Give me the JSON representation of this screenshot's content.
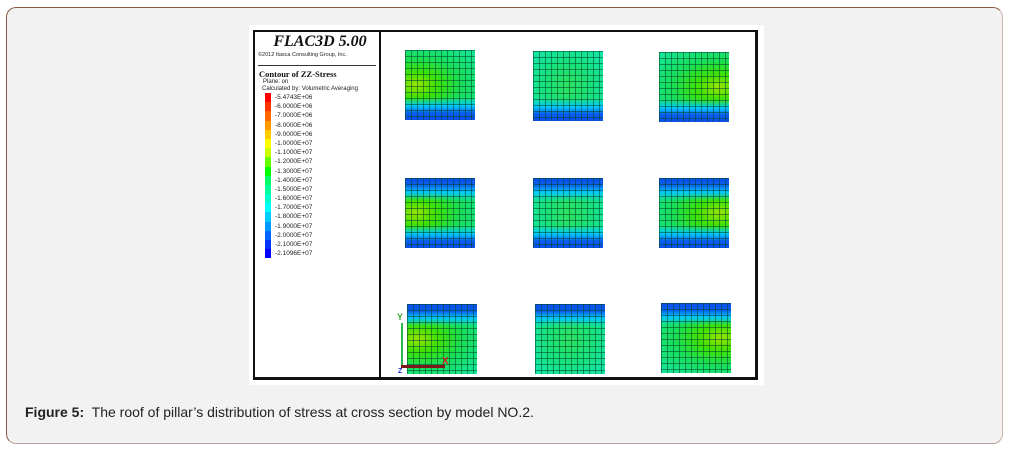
{
  "figure": {
    "software_title": "FLAC3D 5.00",
    "copyright": "©2012 Itasca Consulting Group, Inc.",
    "contour_title": "Contour of ZZ-Stress",
    "plane": "Plane: on",
    "calculated_by": "Calculated by: Volumetric Averaging",
    "legend": [
      {
        "label": "-5.4743E+06",
        "color": "#ff0000"
      },
      {
        "label": "-6.0000E+06",
        "color": "#ff3300"
      },
      {
        "label": "-7.0000E+06",
        "color": "#ff6600"
      },
      {
        "label": "-8.0000E+06",
        "color": "#ff9900"
      },
      {
        "label": "-9.0000E+06",
        "color": "#ffcc00"
      },
      {
        "label": "-1.0000E+07",
        "color": "#ffff00"
      },
      {
        "label": "-1.1000E+07",
        "color": "#ccff00"
      },
      {
        "label": "-1.2000E+07",
        "color": "#66ff00"
      },
      {
        "label": "-1.3000E+07",
        "color": "#00ff00"
      },
      {
        "label": "-1.4000E+07",
        "color": "#00ff66"
      },
      {
        "label": "-1.5000E+07",
        "color": "#00ff99"
      },
      {
        "label": "-1.6000E+07",
        "color": "#00ffcc"
      },
      {
        "label": "-1.7000E+07",
        "color": "#00ffff"
      },
      {
        "label": "-1.8000E+07",
        "color": "#00ccff"
      },
      {
        "label": "-1.9000E+07",
        "color": "#0099ff"
      },
      {
        "label": "-2.0000E+07",
        "color": "#0066ff"
      },
      {
        "label": "-2.1000E+07",
        "color": "#0033ff"
      },
      {
        "label": "-2.1096E+07",
        "color": "#0000ff"
      }
    ],
    "axes": {
      "y": "Y",
      "x": "X",
      "z": "Z"
    },
    "pillars": [
      {
        "row": 1,
        "col": 1,
        "blue_edge": "bottom"
      },
      {
        "row": 1,
        "col": 2,
        "blue_edge": "bottom"
      },
      {
        "row": 1,
        "col": 3,
        "blue_edge": "bottom"
      },
      {
        "row": 2,
        "col": 1,
        "blue_edge": "top-bottom"
      },
      {
        "row": 2,
        "col": 2,
        "blue_edge": "top-bottom"
      },
      {
        "row": 2,
        "col": 3,
        "blue_edge": "top-bottom"
      },
      {
        "row": 3,
        "col": 1,
        "blue_edge": "top"
      },
      {
        "row": 3,
        "col": 2,
        "blue_edge": "top"
      },
      {
        "row": 3,
        "col": 3,
        "blue_edge": "top"
      }
    ]
  },
  "caption": {
    "label": "Figure 5:",
    "text": "The roof of pillar’s distribution of stress at cross section by model NO.2."
  }
}
